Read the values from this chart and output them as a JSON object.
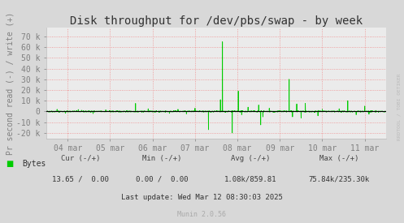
{
  "title": "Disk throughput for /dev/pbs/swap - by week",
  "ylabel": "Pr second read (-) / write (+)",
  "background_color": "#d8d8d8",
  "plot_bg_color": "#ebebeb",
  "grid_color": "#f08080",
  "line_color": "#00cc00",
  "zero_line_color": "#000000",
  "ylim": [
    -25000,
    78000
  ],
  "yticks": [
    -20000,
    -10000,
    0,
    10000,
    20000,
    30000,
    40000,
    50000,
    60000,
    70000
  ],
  "ytick_labels": [
    "-20 k",
    "-10 k",
    "0",
    "10 k",
    "20 k",
    "30 k",
    "40 k",
    "50 k",
    "60 k",
    "70 k"
  ],
  "xtick_labels": [
    "04 mar",
    "05 mar",
    "06 mar",
    "07 mar",
    "08 mar",
    "09 mar",
    "10 mar",
    "11 mar"
  ],
  "legend_label": "Bytes",
  "legend_color": "#00cc00",
  "footer_munin": "Munin 2.0.56",
  "watermark": "RRDTOOL / TOBI OETIKER",
  "tick_color": "#808080",
  "title_fontsize": 10,
  "tick_fontsize": 7,
  "ylabel_fontsize": 7
}
